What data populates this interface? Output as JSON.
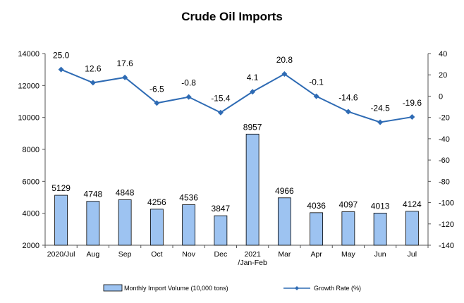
{
  "chart_data": {
    "type": "bar+line",
    "title": "Crude Oil Imports",
    "categories": [
      "2020/Jul",
      "Aug",
      "Sep",
      "Oct",
      "Nov",
      "Dec",
      "2021 /Jan-Feb",
      "Mar",
      "Apr",
      "May",
      "Jun",
      "Jul"
    ],
    "category_lines": [
      [
        "2020/Jul"
      ],
      [
        "Aug"
      ],
      [
        "Sep"
      ],
      [
        "Oct"
      ],
      [
        "Nov"
      ],
      [
        "Dec"
      ],
      [
        "2021",
        "/Jan-Feb"
      ],
      [
        "Mar"
      ],
      [
        "Apr"
      ],
      [
        "May"
      ],
      [
        "Jun"
      ],
      [
        "Jul"
      ]
    ],
    "series": [
      {
        "name": "Monthly Import Volume (10,000 tons)",
        "type": "bar",
        "axis": "left",
        "color": "#9dc3f1",
        "values": [
          5129,
          4748,
          4848,
          4256,
          4536,
          3847,
          8957,
          4966,
          4036,
          4097,
          4013,
          4124
        ],
        "labels": [
          "5129",
          "4748",
          "4848",
          "4256",
          "4536",
          "3847",
          "8957",
          "4966",
          "4036",
          "4097",
          "4013",
          "4124"
        ]
      },
      {
        "name": "Growth Rate (%)",
        "type": "line",
        "axis": "right",
        "color": "#2e6bb4",
        "values": [
          25.0,
          12.6,
          17.6,
          -6.5,
          -0.8,
          -15.4,
          4.1,
          20.8,
          -0.1,
          -14.6,
          -24.5,
          -19.6
        ],
        "labels": [
          "25.0",
          "12.6",
          "17.6",
          "-6.5",
          "-0.8",
          "-15.4",
          "4.1",
          "20.8",
          "-0.1",
          "-14.6",
          "-24.5",
          "-19.6"
        ]
      }
    ],
    "y_left": {
      "min": 2000,
      "max": 14000,
      "ticks": [
        "2000",
        "4000",
        "6000",
        "8000",
        "10000",
        "12000",
        "14000"
      ]
    },
    "y_right": {
      "min": -140,
      "max": 40,
      "ticks": [
        "-140",
        "-120",
        "-100",
        "-80",
        "-60",
        "-40",
        "-20",
        "0",
        "20",
        "40"
      ]
    },
    "grid": false,
    "legend_position": "bottom"
  }
}
